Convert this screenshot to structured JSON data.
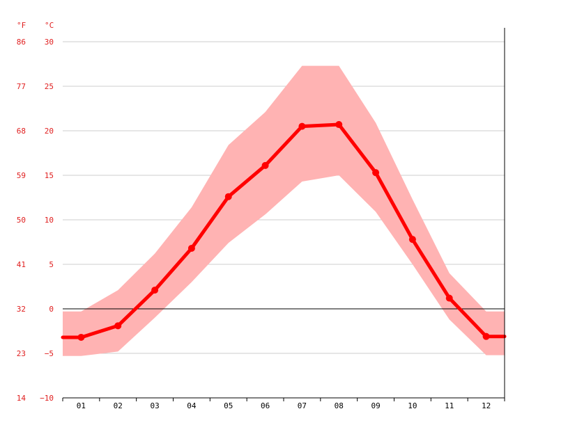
{
  "chart_data": {
    "type": "line",
    "units": {
      "fahrenheit": "°F",
      "celsius": "°C"
    },
    "categories": [
      "01",
      "02",
      "03",
      "04",
      "05",
      "06",
      "07",
      "08",
      "09",
      "10",
      "11",
      "12"
    ],
    "y_ticks_celsius": [
      "30",
      "25",
      "20",
      "15",
      "10",
      "5",
      "0",
      "−5",
      "−10"
    ],
    "y_ticks_fahrenheit": [
      "86",
      "77",
      "68",
      "59",
      "50",
      "41",
      "32",
      "23",
      "14"
    ],
    "y_tick_values": [
      30,
      25,
      20,
      15,
      10,
      5,
      0,
      -5,
      -10
    ],
    "ylim": [
      -10,
      30
    ],
    "grid": true,
    "series": [
      {
        "kind": "mean",
        "values": [
          -3.2,
          -1.9,
          2.1,
          6.8,
          12.6,
          16.1,
          20.5,
          20.7,
          15.3,
          7.8,
          1.2,
          -3.1
        ]
      },
      {
        "kind": "max",
        "values": [
          -0.3,
          2.1,
          6.2,
          11.4,
          18.4,
          22.1,
          27.3,
          27.3,
          20.9,
          12.3,
          4.0,
          -0.3
        ]
      },
      {
        "kind": "min",
        "values": [
          -5.3,
          -4.8,
          -1.0,
          3.0,
          7.4,
          10.6,
          14.3,
          15.0,
          10.9,
          5.0,
          -1.2,
          -5.2
        ]
      }
    ],
    "colors": {
      "mean": "#ff0000",
      "range": "#ffb3b3",
      "axis_text": "#e02020",
      "grid": "#cccccc",
      "zero": "#000000"
    }
  }
}
